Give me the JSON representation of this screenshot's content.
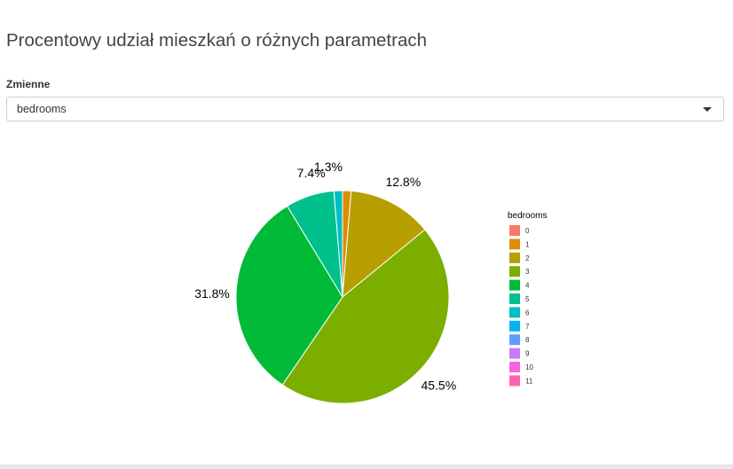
{
  "page": {
    "title": "Procentowy udział mieszkań o różnych parametrach"
  },
  "filter": {
    "label": "Zmienne",
    "selected": "bedrooms"
  },
  "chart_data": {
    "type": "pie",
    "title": "",
    "legend_title": "bedrooms",
    "legend_position": "right",
    "categories": [
      "0",
      "1",
      "2",
      "3",
      "4",
      "5",
      "6",
      "7",
      "8",
      "9",
      "10",
      "11"
    ],
    "values": [
      0.0,
      1.3,
      12.8,
      45.5,
      31.8,
      7.4,
      1.3,
      0.0,
      0.0,
      0.0,
      0.0,
      0.0
    ],
    "labels": [
      "",
      "",
      "12.8%",
      "45.5%",
      "31.8%",
      "7.4%",
      "1.3%",
      "",
      "",
      "",
      "",
      ""
    ],
    "colors": [
      "#F8766D",
      "#DE8C00",
      "#B79F00",
      "#7CAE00",
      "#00BA38",
      "#00C08B",
      "#00BFC4",
      "#00B4F0",
      "#619CFF",
      "#C77CFF",
      "#F564E3",
      "#FF64B0"
    ]
  }
}
